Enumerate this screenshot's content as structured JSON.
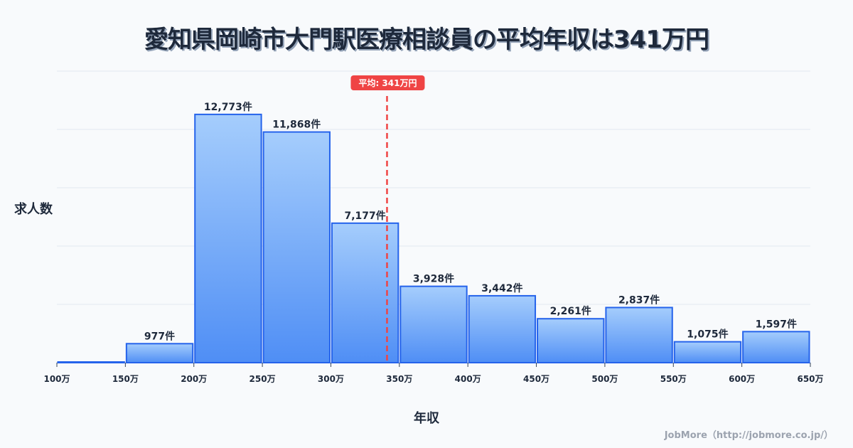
{
  "title": "愛知県岡崎市大門駅医療相談員の平均年収は341万円",
  "y_axis_label": "求人数",
  "x_axis_label": "年収",
  "credit": "JobMore（http://jobmore.co.jp/）",
  "average_label": "平均: 341万円",
  "colors": {
    "bar_top": "#a5cdfc",
    "bar_bottom": "#4f8ef5",
    "bar_border": "#2563eb",
    "average_line": "#ef4444",
    "grid": "#e2e8f0",
    "text": "#1e293b"
  },
  "chart_data": {
    "type": "bar",
    "title": "愛知県岡崎市大門駅医療相談員の平均年収は341万円",
    "xlabel": "年収",
    "ylabel": "求人数",
    "bin_edges": [
      "100万",
      "150万",
      "200万",
      "250万",
      "300万",
      "350万",
      "400万",
      "450万",
      "500万",
      "550万",
      "600万",
      "650万"
    ],
    "categories": [
      "100-150万",
      "150-200万",
      "200-250万",
      "250-300万",
      "300-350万",
      "350-400万",
      "400-450万",
      "450-500万",
      "500-550万",
      "550-600万",
      "600-650万"
    ],
    "values": [
      0,
      977,
      12773,
      11868,
      7177,
      3928,
      3442,
      2261,
      2837,
      1075,
      1597
    ],
    "value_labels": [
      "",
      "977件",
      "12,773件",
      "11,868件",
      "7,177件",
      "3,928件",
      "3,442件",
      "2,261件",
      "2,837件",
      "1,075件",
      "1,597件"
    ],
    "ylim": [
      0,
      15000
    ],
    "grid": true,
    "average": 341,
    "average_annotation": "平均: 341万円"
  }
}
